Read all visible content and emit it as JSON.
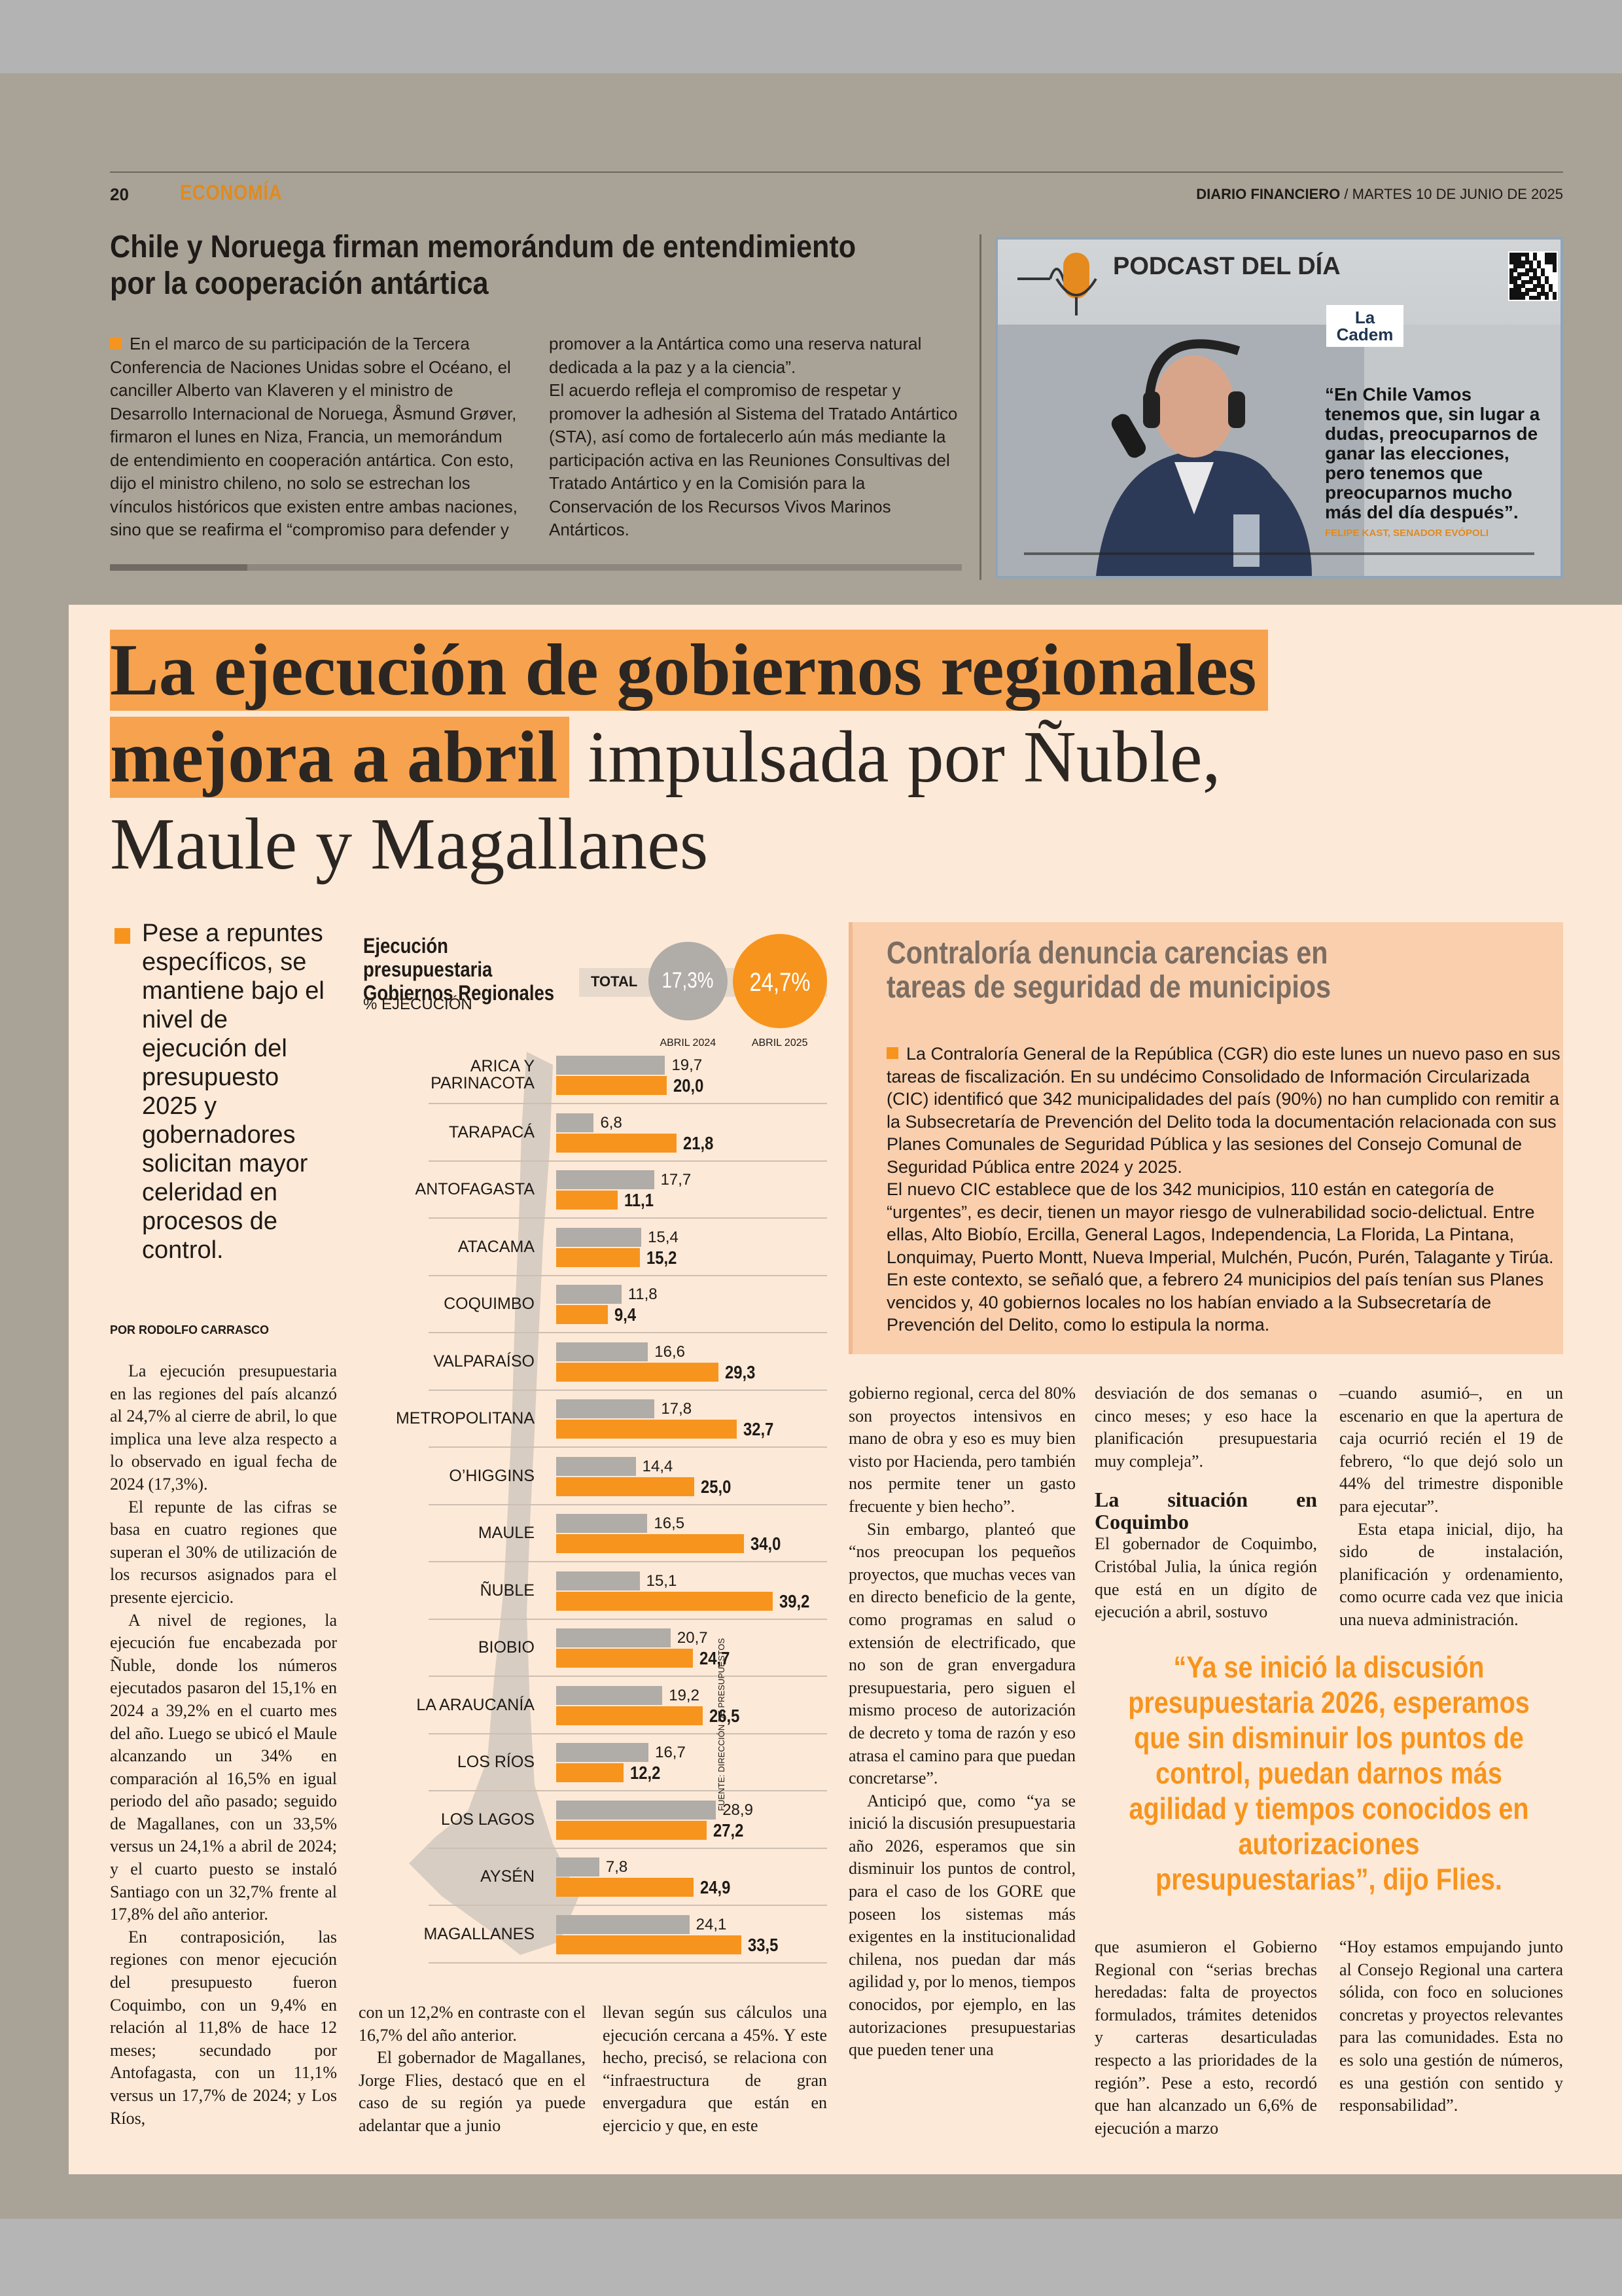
{
  "header": {
    "page": "20",
    "section": "ECONOMÍA",
    "brand": "DIARIO FINANCIERO",
    "date": "/ MARTES 10 DE JUNIO DE 2025"
  },
  "top_article": {
    "title": "Chile y Noruega firman memorándum de entendimiento por la cooperación antártica",
    "paragraphs": [
      "En el marco de su participación de la Tercera Conferencia de Naciones Unidas sobre el Océano, el canciller Alberto van Klaveren y el ministro de Desarrollo Internacional de Noruega, Åsmund Grøver, firmaron el lunes en Niza, Francia, un memorándum de entendimiento en cooperación antártica. Con esto, dijo el ministro chileno, no solo se estrechan los vínculos históricos que existen entre ambas naciones, sino que se reafirma el “compromiso para defender y promover a la Antártica como una reserva natural dedicada a la paz y a la ciencia”.",
      "El acuerdo refleja el compromiso de respetar y promover la adhesión al Sistema del Tratado Antártico (STA), así como de fortalecerlo aún más mediante la participación activa en las Reuniones Consultivas del Tratado Antártico y en la Comisión para la Conservación de los Recursos Vivos Marinos Antárticos."
    ]
  },
  "podcast": {
    "title": "PODCAST DEL DÍA",
    "logo": "La Cadem",
    "quote": "“En Chile Vamos tenemos que, sin lugar a dudas, preocuparnos de ganar las elecciones, pero tenemos que preocuparnos mucho más del día después”.",
    "attribution": "FELIPE KAST, SENADOR EVÓPOLI"
  },
  "headline": {
    "highlight": "La ejecución de gobiernos regionales mejora a abril",
    "rest": "impulsada por Ñuble, Maule y Magallanes"
  },
  "deck": "Pese a repuntes específicos, se mantiene bajo el nivel de ejecución del presupuesto 2025 y gobernadores solicitan mayor celeridad en procesos de control.",
  "byline": "POR RODOLFO CARRASCO",
  "chart_data": {
    "type": "bar",
    "orientation": "horizontal",
    "title": "Ejecución presupuestaria Gobiernos Regionales",
    "subtitle": "% EJECUCIÓN",
    "source": "FUENTE: DIRECCIÓN DE PRESUPUESTOS",
    "total": {
      "label": "TOTAL",
      "values": [
        17.3,
        24.7
      ],
      "value_labels": [
        "17,3%",
        "24,7%"
      ]
    },
    "categories": [
      "ARICA Y PARINACOTA",
      "TARAPACÁ",
      "ANTOFAGASTA",
      "ATACAMA",
      "COQUIMBO",
      "VALPARAÍSO",
      "METROPOLITANA",
      "O’HIGGINS",
      "MAULE",
      "ÑUBLE",
      "BIOBIO",
      "LA ARAUCANÍA",
      "LOS RÍOS",
      "LOS LAGOS",
      "AYSÉN",
      "MAGALLANES"
    ],
    "xlim": [
      0,
      40
    ],
    "series": [
      {
        "name": "ABRIL 2024",
        "color": "#b0aca7",
        "values": [
          19.7,
          6.8,
          17.7,
          15.4,
          11.8,
          16.6,
          17.8,
          14.4,
          16.5,
          15.1,
          20.7,
          19.2,
          16.7,
          28.9,
          7.8,
          24.1
        ],
        "value_labels": [
          "19,7",
          "6,8",
          "17,7",
          "15,4",
          "11,8",
          "16,6",
          "17,8",
          "14,4",
          "16,5",
          "15,1",
          "20,7",
          "19,2",
          "16,7",
          "28,9",
          "7,8",
          "24,1"
        ]
      },
      {
        "name": "ABRIL 2025",
        "color": "#f7941d",
        "values": [
          20.0,
          21.8,
          11.1,
          15.2,
          9.4,
          29.3,
          32.7,
          25.0,
          34.0,
          39.2,
          24.7,
          26.5,
          12.2,
          27.2,
          24.9,
          33.5
        ],
        "value_labels": [
          "20,0",
          "21,8",
          "11,1",
          "15,2",
          "9,4",
          "29,3",
          "32,7",
          "25,0",
          "34,0",
          "39,2",
          "24,7",
          "26,5",
          "12,2",
          "27,2",
          "24,9",
          "33,5"
        ]
      }
    ]
  },
  "body": {
    "col1": [
      "La ejecución presupuestaria en las regiones del país alcanzó al 24,7% al cierre de abril, lo que implica una leve alza respecto a lo observado en igual fecha de 2024 (17,3%).",
      "El repunte de las cifras se basa en cuatro regiones que superan el 30% de utilización de los recursos asignados para el presente ejercicio.",
      "A nivel de regiones, la ejecución fue encabezada por Ñuble, donde los números ejecutados pasaron del 15,1% en 2024 a 39,2% en el cuarto mes del año. Luego se ubicó el Maule alcanzando un 34% en comparación al 16,5% en igual periodo del año pasado; seguido de Magallanes, con un 33,5% versus un 24,1% a abril de 2024; y el cuarto puesto se instaló Santiago con un 32,7% frente al 17,8% del año anterior.",
      "En contraposición, las regiones con menor ejecución del presupuesto fueron Coquimbo, con un 9,4% en relación al 11,8% de hace 12 meses; secundado por Antofagasta, con un 11,1% versus un 17,7% de 2024; y Los Ríos,"
    ],
    "col2": [
      "con un 12,2% en contraste con el 16,7% del año anterior.",
      "El gobernador de Magallanes, Jorge Flies, destacó que en el caso de su región ya puede adelantar que a junio"
    ],
    "col3": [
      "llevan según sus cálculos una ejecución cercana a 45%. Y este hecho, precisó, se relaciona con “infraestructura de gran envergadura que están en ejercicio y que, en este"
    ],
    "col4": [
      "gobierno regional, cerca del 80% son proyectos intensivos en mano de obra y eso es muy bien visto por Hacienda, pero también nos permite tener un gasto frecuente y bien hecho”.",
      "Sin embargo, planteó que “nos preocupan los pequeños proyectos, que muchas veces van en directo beneficio de la gente, como programas en salud o extensión de electrificado, que no son de gran envergadura presupuestaria, pero siguen el mismo proceso de autorización de decreto y toma de razón y eso atrasa el camino para que puedan concretarse”.",
      "Anticipó que, como “ya se inició la discusión presupuestaria año 2026, esperamos que sin disminuir los puntos de control, para el caso de los GORE que poseen los sistemas más exigentes en la institucionalidad chilena, nos puedan dar más agilidad y, por lo menos, tiempos conocidos, por ejemplo, en las autorizaciones presupuestarias que pueden tener una"
    ],
    "col5a": [
      "desviación de dos semanas o cinco meses; y eso hace la planificación presupuestaria muy compleja”."
    ],
    "subhead": "La situación en Coquimbo",
    "col5b": [
      "El gobernador de Coquimbo, Cristóbal Julia, la única región que está en un dígito de ejecución a abril, sostuvo"
    ],
    "col6a": [
      "–cuando asumió–, en un escenario en que la apertura de caja ocurrió recién el 19 de febrero, “lo que dejó solo un 44% del trimestre disponible para ejecutar”.",
      "Esta etapa inicial, dijo, ha sido de instalación, planificación y ordenamiento, como ocurre cada vez que inicia una nueva administración."
    ],
    "pull_quote": "“Ya se inició la discusión presupuestaria 2026, esperamos que sin disminuir los puntos de control, puedan darnos más agilidad y tiempos conocidos en autorizaciones presupuestarias”, dijo Flies.",
    "col5c": [
      "que asumieron el Gobierno Regional con “serias brechas heredadas: falta de proyectos formulados, trámites detenidos y carteras desarticuladas respecto a las prioridades de la región”. Pese a esto, recordó que han alcanzado un 6,6% de ejecución a marzo"
    ],
    "col6b": [
      "“Hoy estamos empujando junto al Consejo Regional una cartera sólida, con foco en soluciones concretas y proyectos relevantes para las comunidades. Esta no es solo una gestión de números, es una gestión con sentido y responsabilidad”."
    ]
  },
  "sidebar": {
    "title": "Contraloría denuncia carencias en tareas de seguridad de municipios",
    "paragraphs": [
      "La Contraloría General de la República (CGR) dio este lunes un nuevo paso en sus tareas de fiscalización. En su undécimo Consolidado de Información Circularizada (CIC) identificó que 342 municipalidades del país (90%) no han cumplido con remitir a la Subsecretaría de Prevención del Delito toda la documentación relacionada con sus Planes Comunales de Seguridad Pública y las sesiones del Consejo Comunal de Seguridad Pública entre 2024 y 2025.",
      "El nuevo CIC establece que de los 342 municipios, 110 están en categoría de “urgentes”, es decir, tienen un mayor riesgo de vulnerabilidad socio-delictual. Entre ellas, Alto Biobío, Ercilla, General Lagos, Independencia, La Florida, La Pintana, Lonquimay, Puerto Montt, Nueva Imperial, Mulchén, Pucón, Purén, Talagante y Tirúa. En este contexto, se señaló que, a febrero 24 municipios del país tenían sus Planes vencidos y, 40 gobiernos locales no los habían enviado a la Subsecretaría de Prevención del Delito, como lo estipula la norma."
    ]
  }
}
